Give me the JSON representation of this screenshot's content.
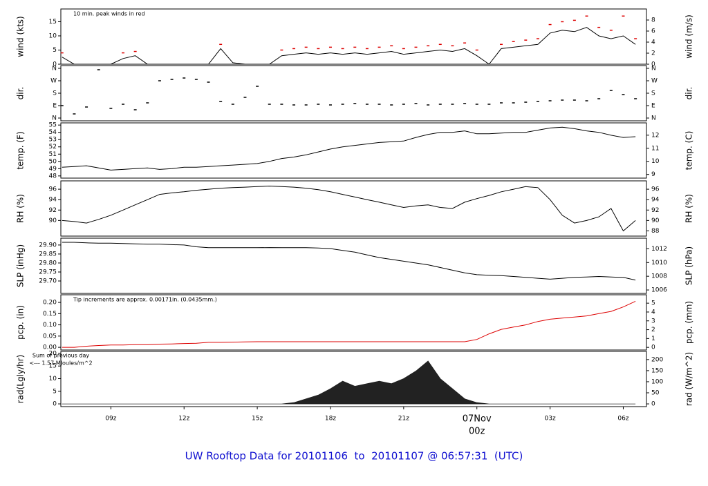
{
  "footer": "UW Rooftop Data for 20101106  to  20101107 @ 06:57:31  (UTC)",
  "x_axis": {
    "xlim": [
      6.95,
      30.95
    ],
    "xticks": [
      {
        "value": 9,
        "label": "09z"
      },
      {
        "value": 12,
        "label": "12z"
      },
      {
        "value": 15,
        "label": "15z"
      },
      {
        "value": 18,
        "label": "18z"
      },
      {
        "value": 21,
        "label": "21z"
      },
      {
        "value": 24,
        "label": "00z",
        "day": "07Nov",
        "color": "#cc0000"
      },
      {
        "value": 27,
        "label": "03z"
      },
      {
        "value": 30,
        "label": "06z"
      }
    ],
    "x": [
      7,
      7.5,
      8,
      8.5,
      9,
      9.5,
      10,
      10.5,
      11,
      11.5,
      12,
      12.5,
      13,
      13.5,
      14,
      14.5,
      15,
      15.5,
      16,
      16.5,
      17,
      17.5,
      18,
      18.5,
      19,
      19.5,
      20,
      20.5,
      21,
      21.5,
      22,
      22.5,
      23,
      23.5,
      24,
      24.5,
      25,
      25.5,
      26,
      26.5,
      27,
      27.5,
      28,
      28.5,
      29,
      29.5,
      30,
      30.5
    ]
  },
  "chart_data": [
    {
      "type": "line",
      "ylabel": "wind (kts)",
      "y2label": "wind (m/s)",
      "ylim": [
        0,
        19.5
      ],
      "yticks": [
        0,
        5,
        10,
        15
      ],
      "y2lim": [
        0,
        10
      ],
      "y2ticks": [
        0,
        2,
        4,
        6,
        8
      ],
      "annotations": [
        "10 min. peak winds in red"
      ],
      "annotation_color": "#cc0000",
      "series": [
        {
          "color": "#000000",
          "style": "line",
          "values": [
            2.5,
            0,
            0,
            0,
            0,
            2,
            3,
            0,
            0,
            0,
            0,
            0,
            0,
            5.5,
            0.5,
            0,
            0,
            0,
            3,
            3.5,
            4,
            3.5,
            4,
            3.5,
            4,
            3.5,
            4,
            4.5,
            3.5,
            4,
            4.5,
            5,
            4.5,
            5.5,
            3,
            0,
            5.5,
            6,
            6.5,
            7,
            11,
            12,
            11.5,
            13,
            10,
            9,
            10,
            7
          ]
        },
        {
          "color": "#dd0000",
          "style": "dash",
          "values": [
            4,
            null,
            null,
            null,
            null,
            4,
            4.5,
            null,
            null,
            null,
            null,
            null,
            null,
            7,
            null,
            null,
            null,
            null,
            5,
            5.5,
            6,
            5.5,
            6,
            5.5,
            6,
            5.5,
            6,
            6.5,
            5.5,
            6,
            6.5,
            7,
            6.5,
            7.5,
            5,
            null,
            7,
            8,
            8.5,
            9,
            14,
            15,
            15.5,
            17,
            13,
            12,
            17,
            9
          ]
        }
      ]
    },
    {
      "type": "scatter",
      "ylabel": "dir.",
      "y2label": "dir.",
      "ylim": [
        -20,
        380
      ],
      "yticks": [
        {
          "value": 0,
          "label": "N"
        },
        {
          "value": 90,
          "label": "E"
        },
        {
          "value": 180,
          "label": "S"
        },
        {
          "value": 270,
          "label": "W"
        },
        {
          "value": 360,
          "label": "N"
        }
      ],
      "y2lim": [
        -20,
        380
      ],
      "y2ticks": [
        {
          "value": 0,
          "label": "N"
        },
        {
          "value": 90,
          "label": "E"
        },
        {
          "value": 180,
          "label": "S"
        },
        {
          "value": 270,
          "label": "W"
        },
        {
          "value": 360,
          "label": "N"
        }
      ],
      "series": [
        {
          "color": "#000000",
          "style": "dash",
          "values": [
            90,
            30,
            80,
            350,
            70,
            100,
            60,
            110,
            270,
            280,
            290,
            280,
            260,
            120,
            100,
            150,
            230,
            100,
            100,
            95,
            95,
            100,
            95,
            100,
            105,
            100,
            100,
            95,
            100,
            105,
            95,
            100,
            100,
            105,
            100,
            100,
            110,
            110,
            115,
            120,
            125,
            130,
            130,
            125,
            140,
            200,
            170,
            140
          ]
        }
      ]
    },
    {
      "type": "line",
      "ylabel": "temp. (F)",
      "y2label": "temp. (C)",
      "ylim": [
        47.7,
        55.3
      ],
      "yticks": [
        48,
        49,
        50,
        51,
        52,
        53,
        54,
        55
      ],
      "y2lim": [
        8.72,
        12.94
      ],
      "y2ticks": [
        9,
        10,
        11,
        12
      ],
      "series": [
        {
          "color": "#000000",
          "style": "line",
          "values": [
            49.2,
            49.3,
            49.4,
            49.1,
            48.8,
            48.9,
            49.0,
            49.1,
            48.9,
            49.0,
            49.2,
            49.2,
            49.3,
            49.4,
            49.5,
            49.6,
            49.7,
            50.0,
            50.4,
            50.6,
            50.9,
            51.3,
            51.7,
            52.0,
            52.2,
            52.4,
            52.6,
            52.7,
            52.8,
            53.3,
            53.7,
            54.0,
            54.0,
            54.2,
            53.8,
            53.8,
            53.9,
            54.0,
            54.0,
            54.3,
            54.6,
            54.7,
            54.5,
            54.2,
            54.0,
            53.6,
            53.3,
            53.4
          ]
        }
      ]
    },
    {
      "type": "line",
      "ylabel": "RH (%)",
      "y2label": "RH (%)",
      "ylim": [
        87,
        97.6
      ],
      "yticks": [
        90,
        92,
        94,
        96
      ],
      "y2lim": [
        87,
        97.6
      ],
      "y2ticks": [
        88,
        90,
        92,
        94,
        96
      ],
      "series": [
        {
          "color": "#000000",
          "style": "line",
          "values": [
            90,
            89.8,
            89.5,
            90.2,
            91,
            92,
            93,
            94,
            95,
            95.3,
            95.5,
            95.8,
            96,
            96.2,
            96.3,
            96.4,
            96.5,
            96.6,
            96.5,
            96.4,
            96.2,
            95.9,
            95.5,
            95,
            94.5,
            94,
            93.5,
            93,
            92.5,
            92.8,
            93,
            92.5,
            92.3,
            93.5,
            94.2,
            94.8,
            95.5,
            96,
            96.5,
            96.3,
            94,
            91,
            89.5,
            90,
            90.7,
            92.3,
            88,
            90
          ]
        }
      ]
    },
    {
      "type": "line",
      "ylabel": "SLP (inHg)",
      "y2label": "SLP (hPa)",
      "ylim": [
        29.631,
        29.938
      ],
      "yticks": [
        {
          "value": 29.7,
          "label": "29.70"
        },
        {
          "value": 29.75,
          "label": "29.75"
        },
        {
          "value": 29.8,
          "label": "29.80"
        },
        {
          "value": 29.85,
          "label": "29.85"
        },
        {
          "value": 29.9,
          "label": "29.90"
        }
      ],
      "y2lim": [
        1005.5,
        1013.55
      ],
      "y2ticks": [
        1006,
        1008,
        1010,
        1012
      ],
      "series": [
        {
          "color": "#000000",
          "style": "line",
          "values": [
            29.915,
            29.915,
            29.912,
            29.91,
            29.91,
            29.908,
            29.906,
            29.905,
            29.905,
            29.902,
            29.9,
            29.89,
            29.885,
            29.885,
            29.885,
            29.885,
            29.885,
            29.886,
            29.885,
            29.885,
            29.885,
            29.883,
            29.88,
            29.87,
            29.86,
            29.845,
            29.83,
            29.82,
            29.81,
            29.8,
            29.79,
            29.775,
            29.76,
            29.745,
            29.735,
            29.732,
            29.73,
            29.725,
            29.72,
            29.715,
            29.71,
            29.715,
            29.72,
            29.722,
            29.725,
            29.722,
            29.72,
            29.705
          ]
        }
      ]
    },
    {
      "type": "line",
      "ylabel": "pcp. (in)",
      "y2label": "pcp. (mm)",
      "ylim": [
        -0.012,
        0.234
      ],
      "yticks": [
        {
          "value": 0,
          "label": "0.00"
        },
        {
          "value": 0.05,
          "label": "0.05"
        },
        {
          "value": 0.1,
          "label": "0.10"
        },
        {
          "value": 0.15,
          "label": "0.15"
        },
        {
          "value": 0.2,
          "label": "0.20"
        }
      ],
      "y2lim": [
        -0.3,
        5.95
      ],
      "y2ticks": [
        0,
        1,
        2,
        3,
        4,
        5
      ],
      "annotations": [
        "Tip increments are approx. 0.00171in. (0.0435mm.)"
      ],
      "annotation_color": "#cc0000",
      "series": [
        {
          "color": "#dd0000",
          "style": "line",
          "values": [
            0,
            0,
            0.005,
            0.008,
            0.01,
            0.01,
            0.012,
            0.012,
            0.014,
            0.015,
            0.017,
            0.018,
            0.022,
            0.022,
            0.023,
            0.024,
            0.025,
            0.025,
            0.025,
            0.025,
            0.025,
            0.025,
            0.025,
            0.025,
            0.025,
            0.025,
            0.025,
            0.025,
            0.025,
            0.025,
            0.025,
            0.025,
            0.025,
            0.025,
            0.035,
            0.06,
            0.08,
            0.09,
            0.1,
            0.115,
            0.125,
            0.13,
            0.135,
            0.14,
            0.15,
            0.16,
            0.18,
            0.205
          ]
        }
      ]
    },
    {
      "type": "area",
      "ylabel": "rad(Lgly/hr)",
      "y2label": "rad (W/m^2)",
      "ylim": [
        -1.08,
        20.8
      ],
      "yticks": [
        0,
        5,
        10,
        15,
        20
      ],
      "y2lim": [
        -12.3,
        237
      ],
      "y2ticks": [
        0,
        50,
        100,
        150,
        200
      ],
      "annotations": [
        "Sum of previous day",
        "<--- 1.57 MJoules/m^2"
      ],
      "annotation_color": "#9900cc",
      "series": [
        {
          "color": "#222222",
          "style": "area",
          "values": [
            0,
            0,
            0,
            0,
            0,
            0,
            0,
            0,
            0,
            0,
            0,
            0,
            0,
            0,
            0,
            0,
            0,
            0,
            0,
            0.5,
            2,
            3.5,
            6,
            9,
            7,
            8,
            9,
            8,
            10,
            13,
            17,
            10,
            6,
            2,
            0.5,
            0,
            0,
            0,
            0,
            0,
            0,
            0,
            0,
            0,
            0,
            0,
            0,
            0
          ]
        }
      ]
    }
  ]
}
